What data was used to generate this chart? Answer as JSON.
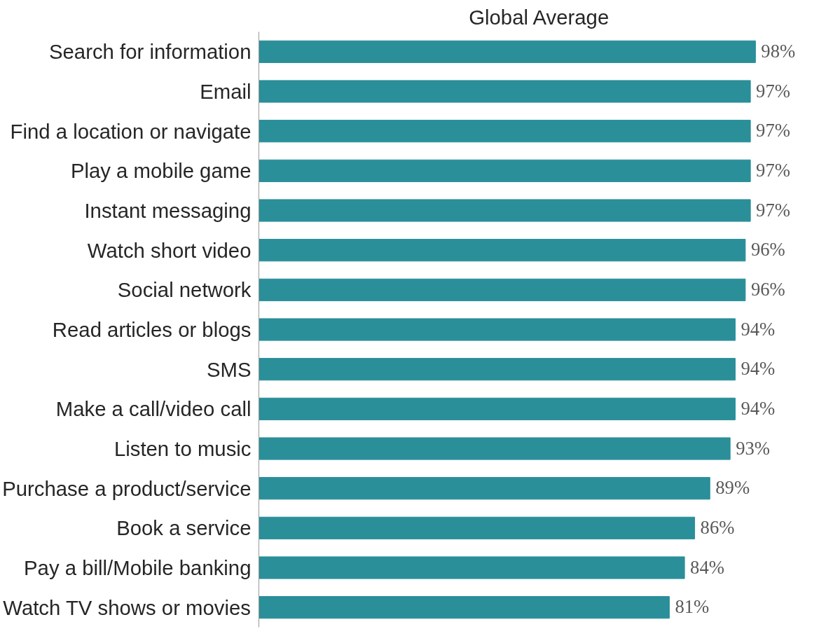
{
  "chart_data": {
    "type": "bar",
    "orientation": "horizontal",
    "title": "Global Average",
    "categories": [
      "Search for information",
      "Email",
      "Find a location or navigate",
      "Play a mobile game",
      "Instant messaging",
      "Watch short video",
      "Social network",
      "Read articles or blogs",
      "SMS",
      "Make a call/video call",
      "Listen to music",
      "Purchase a product/service",
      "Book a service",
      "Pay a bill/Mobile banking",
      "Watch TV shows or movies"
    ],
    "values": [
      98,
      97,
      97,
      97,
      97,
      96,
      96,
      94,
      94,
      94,
      93,
      89,
      86,
      84,
      81
    ],
    "value_labels": [
      "98%",
      "97%",
      "97%",
      "97%",
      "97%",
      "96%",
      "96%",
      "94%",
      "94%",
      "94%",
      "93%",
      "89%",
      "86%",
      "84%",
      "81%"
    ],
    "color": "#2a8f99",
    "tick_labels": "y"
  }
}
